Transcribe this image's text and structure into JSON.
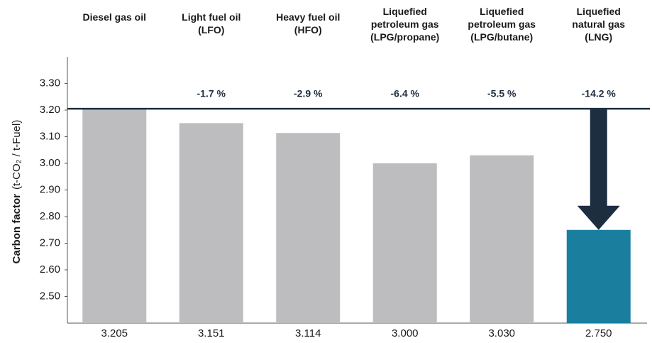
{
  "chart_data": {
    "type": "bar",
    "categories": [
      [
        "Diesel gas oil"
      ],
      [
        "Light fuel oil",
        "(LFO)"
      ],
      [
        "Heavy fuel oil",
        "(HFO)"
      ],
      [
        "Liquefied",
        "petroleum gas",
        "(LPG/propane)"
      ],
      [
        "Liquefied",
        "petroleum gas",
        "(LPG/butane)"
      ],
      [
        "Liquefied",
        "natural gas",
        "(LNG)"
      ]
    ],
    "values": [
      3.205,
      3.151,
      3.114,
      3.0,
      3.03,
      2.75
    ],
    "value_labels": [
      "3.205",
      "3.151",
      "3.114",
      "3.000",
      "3.030",
      "2.750"
    ],
    "annotations": [
      null,
      "-1.7 %",
      "-2.9 %",
      "-6.4 %",
      "-5.5 %",
      "-14.2 %"
    ],
    "colors": [
      "#bdbdbf",
      "#bdbdbf",
      "#bdbdbf",
      "#bdbdbf",
      "#bdbdbf",
      "#1a7f9f"
    ],
    "ylabel": "Carbon factor",
    "ylabel_unit": "(t-CO₂ / t-Fuel)",
    "ylim": [
      2.4,
      3.4
    ],
    "yticks": [
      {
        "value": 2.5,
        "label": "2.50"
      },
      {
        "value": 2.6,
        "label": "2.60"
      },
      {
        "value": 2.7,
        "label": "2.70"
      },
      {
        "value": 2.8,
        "label": "2.80"
      },
      {
        "value": 2.9,
        "label": "2.90"
      },
      {
        "value": 3,
        "label": "3.00"
      },
      {
        "value": 3.1,
        "label": "3.10"
      },
      {
        "value": 3.2,
        "label": "3.20"
      },
      {
        "value": 3.3,
        "label": "3.30"
      }
    ],
    "reference_color": "#1c2e40"
  }
}
